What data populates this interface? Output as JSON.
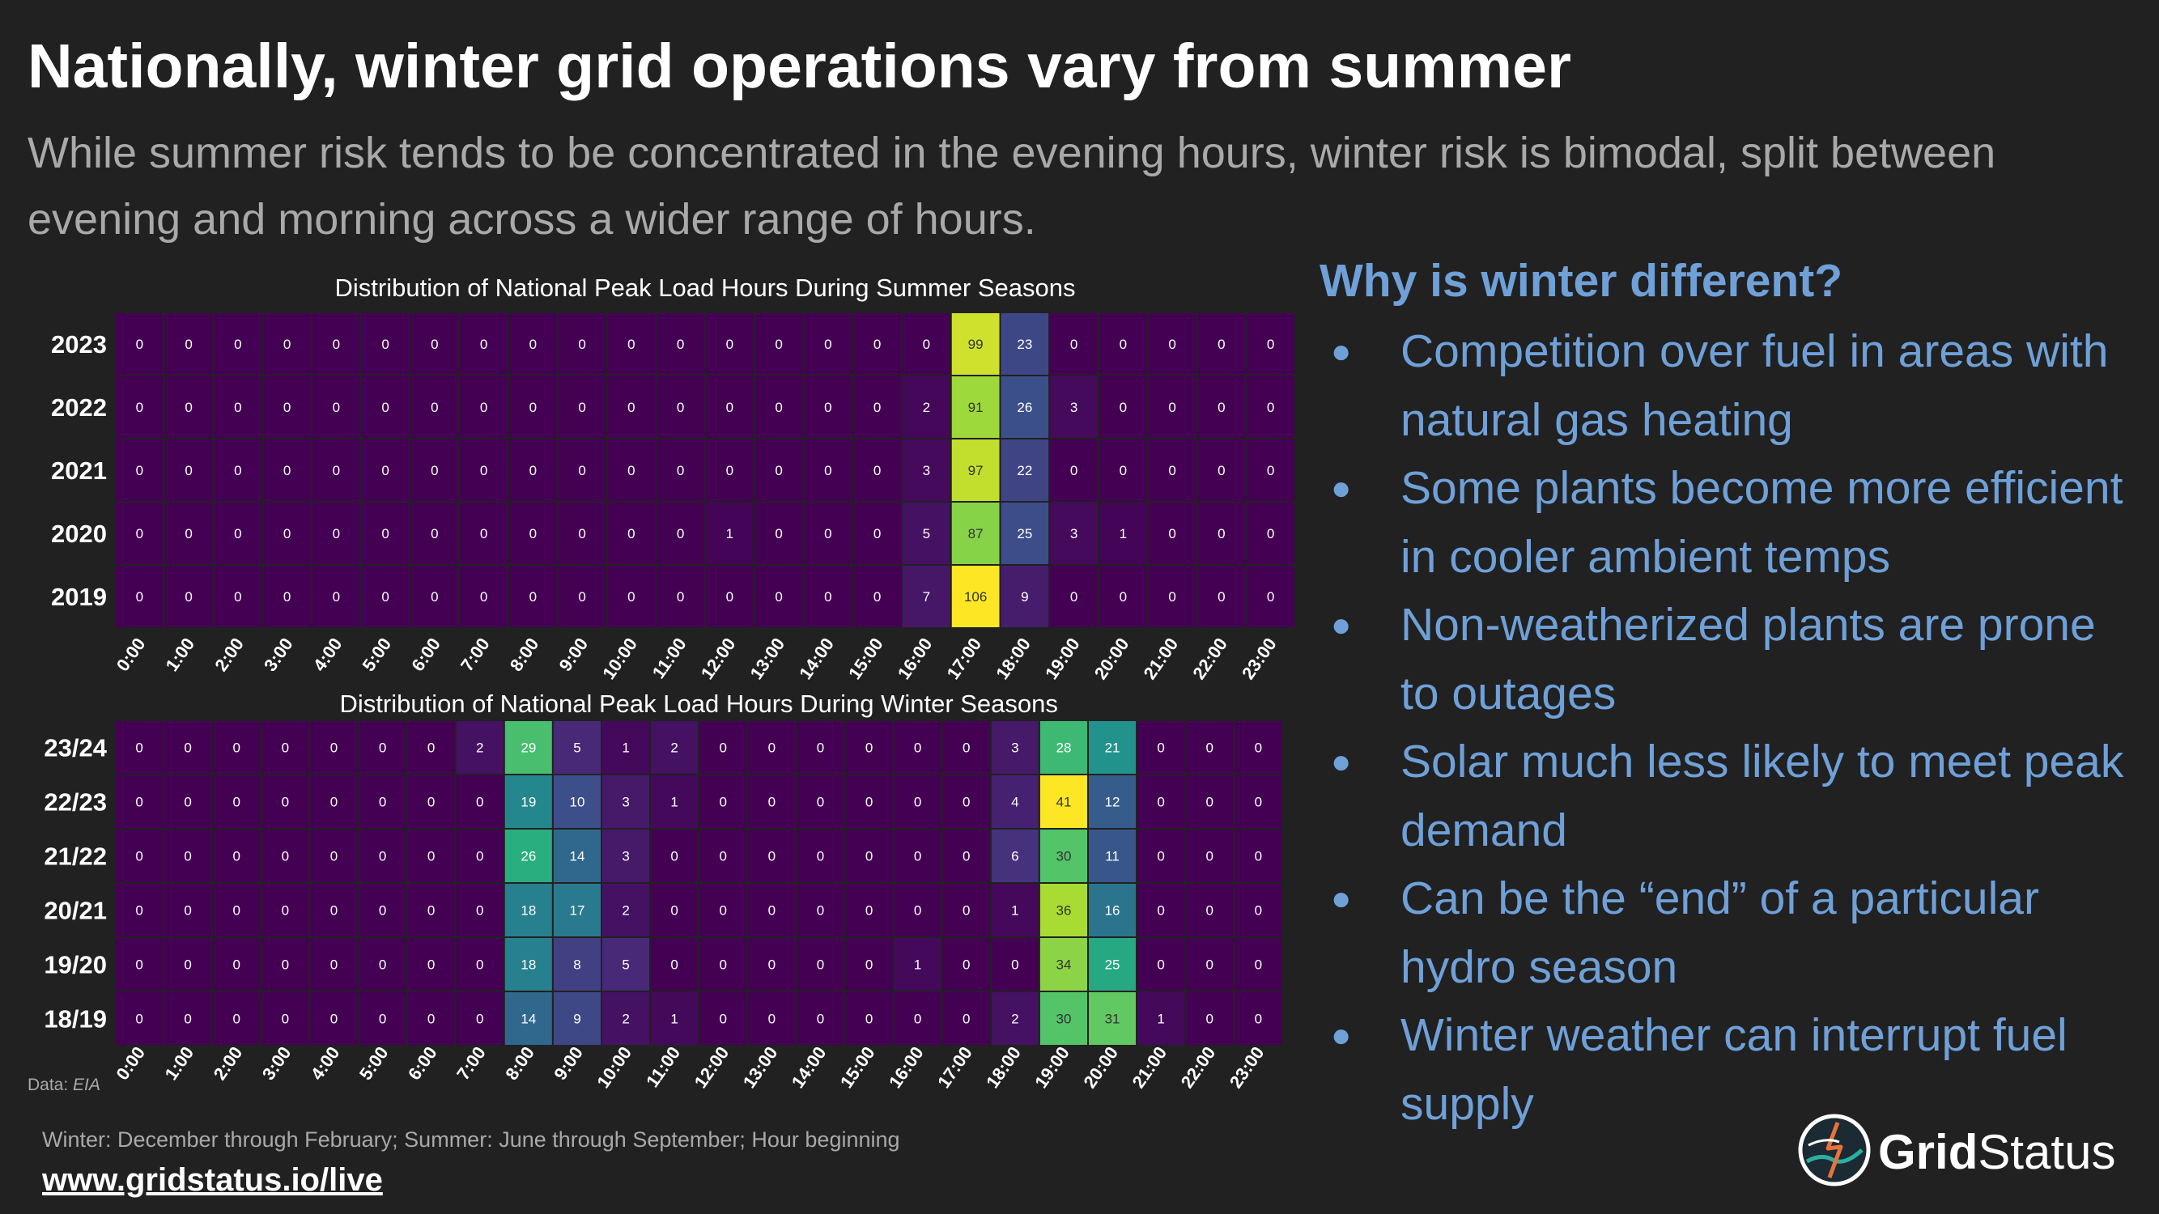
{
  "slide": {
    "title": "Nationally, winter grid operations vary from summer",
    "subtitle": "While summer risk tends to be concentrated in the evening hours, winter risk is bimodal, split between evening and morning across a wider range of hours."
  },
  "sidebar": {
    "heading": "Why is winter different?",
    "bullets": [
      "Competition over fuel in areas with natural gas heating",
      "Some plants become more efficient in cooler ambient temps",
      "Non-weatherized plants are prone to outages",
      "Solar much less likely to meet peak demand",
      "Can be the “end” of a particular hydro season",
      "Winter weather can interrupt fuel supply"
    ]
  },
  "footer": {
    "data_source_prefix": "Data:",
    "data_source_name": "EIA",
    "note": "Winter: December through February; Summer: June through September; Hour beginning",
    "url": "www.gridstatus.io/live",
    "logo_bold": "Grid",
    "logo_regular": "Status"
  },
  "colors": {
    "background": "#212121",
    "title": "#ffffff",
    "subtitle": "#a9a9a9",
    "accent": "#6fa0d8",
    "colormap": "viridis"
  },
  "chart_data": [
    {
      "type": "heatmap",
      "title": "Distribution of National Peak Load Hours During Summer Seasons",
      "xlabel": "",
      "ylabel": "",
      "x": [
        "0:00",
        "1:00",
        "2:00",
        "3:00",
        "4:00",
        "5:00",
        "6:00",
        "7:00",
        "8:00",
        "9:00",
        "10:00",
        "11:00",
        "12:00",
        "13:00",
        "14:00",
        "15:00",
        "16:00",
        "17:00",
        "18:00",
        "19:00",
        "20:00",
        "21:00",
        "22:00",
        "23:00"
      ],
      "y": [
        "2023",
        "2022",
        "2021",
        "2020",
        "2019"
      ],
      "values": [
        [
          0,
          0,
          0,
          0,
          0,
          0,
          0,
          0,
          0,
          0,
          0,
          0,
          0,
          0,
          0,
          0,
          0,
          99,
          23,
          0,
          0,
          0,
          0,
          0
        ],
        [
          0,
          0,
          0,
          0,
          0,
          0,
          0,
          0,
          0,
          0,
          0,
          0,
          0,
          0,
          0,
          0,
          2,
          91,
          26,
          3,
          0,
          0,
          0,
          0
        ],
        [
          0,
          0,
          0,
          0,
          0,
          0,
          0,
          0,
          0,
          0,
          0,
          0,
          0,
          0,
          0,
          0,
          3,
          97,
          22,
          0,
          0,
          0,
          0,
          0
        ],
        [
          0,
          0,
          0,
          0,
          0,
          0,
          0,
          0,
          0,
          0,
          0,
          0,
          1,
          0,
          0,
          0,
          5,
          87,
          25,
          3,
          1,
          0,
          0,
          0
        ],
        [
          0,
          0,
          0,
          0,
          0,
          0,
          0,
          0,
          0,
          0,
          0,
          0,
          0,
          0,
          0,
          0,
          7,
          106,
          9,
          0,
          0,
          0,
          0,
          0
        ]
      ],
      "vmin": 0,
      "vmax": 106
    },
    {
      "type": "heatmap",
      "title": "Distribution of National Peak Load Hours During Winter Seasons",
      "xlabel": "",
      "ylabel": "",
      "x": [
        "0:00",
        "1:00",
        "2:00",
        "3:00",
        "4:00",
        "5:00",
        "6:00",
        "7:00",
        "8:00",
        "9:00",
        "10:00",
        "11:00",
        "12:00",
        "13:00",
        "14:00",
        "15:00",
        "16:00",
        "17:00",
        "18:00",
        "19:00",
        "20:00",
        "21:00",
        "22:00",
        "23:00"
      ],
      "y": [
        "23/24",
        "22/23",
        "21/22",
        "20/21",
        "19/20",
        "18/19"
      ],
      "values": [
        [
          0,
          0,
          0,
          0,
          0,
          0,
          0,
          2,
          29,
          5,
          1,
          2,
          0,
          0,
          0,
          0,
          0,
          0,
          3,
          28,
          21,
          0,
          0,
          0
        ],
        [
          0,
          0,
          0,
          0,
          0,
          0,
          0,
          0,
          19,
          10,
          3,
          1,
          0,
          0,
          0,
          0,
          0,
          0,
          4,
          41,
          12,
          0,
          0,
          0
        ],
        [
          0,
          0,
          0,
          0,
          0,
          0,
          0,
          0,
          26,
          14,
          3,
          0,
          0,
          0,
          0,
          0,
          0,
          0,
          6,
          30,
          11,
          0,
          0,
          0
        ],
        [
          0,
          0,
          0,
          0,
          0,
          0,
          0,
          0,
          18,
          17,
          2,
          0,
          0,
          0,
          0,
          0,
          0,
          0,
          1,
          36,
          16,
          0,
          0,
          0
        ],
        [
          0,
          0,
          0,
          0,
          0,
          0,
          0,
          0,
          18,
          8,
          5,
          0,
          0,
          0,
          0,
          0,
          1,
          0,
          0,
          34,
          25,
          0,
          0,
          0
        ],
        [
          0,
          0,
          0,
          0,
          0,
          0,
          0,
          0,
          14,
          9,
          2,
          1,
          0,
          0,
          0,
          0,
          0,
          0,
          2,
          30,
          31,
          1,
          0,
          0
        ]
      ],
      "vmin": 0,
      "vmax": 41
    }
  ]
}
